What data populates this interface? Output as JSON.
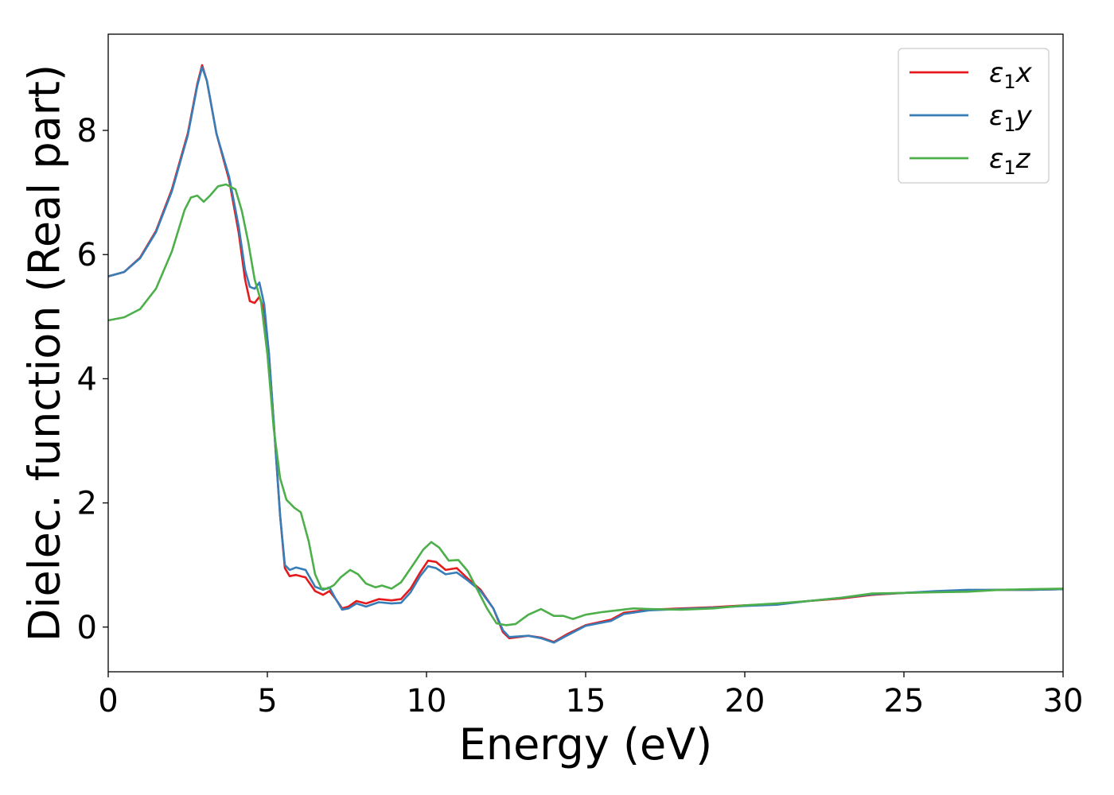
{
  "chart_data": {
    "type": "line",
    "xlabel": "Energy (eV)",
    "ylabel": "Dielec. function (Real part)",
    "xlim": [
      0,
      30
    ],
    "ylim": [
      -0.72,
      9.55
    ],
    "xticks": [
      0,
      5,
      10,
      15,
      20,
      25,
      30
    ],
    "yticks": [
      0,
      2,
      4,
      6,
      8
    ],
    "grid": false,
    "legend_position": "top-right",
    "series": [
      {
        "name": "ε₁x",
        "label_base": "ε",
        "label_sub": "1",
        "label_suffix": "x",
        "color": "#e41a1c",
        "points": [
          [
            0,
            5.65
          ],
          [
            0.5,
            5.72
          ],
          [
            1.0,
            5.95
          ],
          [
            1.5,
            6.38
          ],
          [
            2.0,
            7.05
          ],
          [
            2.5,
            7.95
          ],
          [
            2.8,
            8.75
          ],
          [
            2.95,
            9.05
          ],
          [
            3.1,
            8.8
          ],
          [
            3.4,
            7.95
          ],
          [
            3.8,
            7.2
          ],
          [
            4.1,
            6.35
          ],
          [
            4.3,
            5.6
          ],
          [
            4.45,
            5.25
          ],
          [
            4.6,
            5.22
          ],
          [
            4.75,
            5.32
          ],
          [
            4.9,
            5.1
          ],
          [
            5.05,
            4.4
          ],
          [
            5.2,
            3.3
          ],
          [
            5.4,
            1.8
          ],
          [
            5.55,
            0.95
          ],
          [
            5.7,
            0.82
          ],
          [
            5.9,
            0.84
          ],
          [
            6.2,
            0.8
          ],
          [
            6.5,
            0.58
          ],
          [
            6.75,
            0.52
          ],
          [
            6.95,
            0.58
          ],
          [
            7.15,
            0.45
          ],
          [
            7.35,
            0.3
          ],
          [
            7.55,
            0.33
          ],
          [
            7.8,
            0.42
          ],
          [
            8.1,
            0.38
          ],
          [
            8.5,
            0.45
          ],
          [
            8.9,
            0.43
          ],
          [
            9.2,
            0.45
          ],
          [
            9.5,
            0.62
          ],
          [
            9.8,
            0.88
          ],
          [
            10.05,
            1.07
          ],
          [
            10.3,
            1.05
          ],
          [
            10.6,
            0.92
          ],
          [
            10.95,
            0.95
          ],
          [
            11.3,
            0.78
          ],
          [
            11.7,
            0.6
          ],
          [
            12.1,
            0.3
          ],
          [
            12.4,
            -0.08
          ],
          [
            12.6,
            -0.18
          ],
          [
            13.2,
            -0.14
          ],
          [
            13.6,
            -0.17
          ],
          [
            14.0,
            -0.24
          ],
          [
            14.4,
            -0.12
          ],
          [
            15.0,
            0.03
          ],
          [
            15.8,
            0.12
          ],
          [
            16.2,
            0.23
          ],
          [
            17.0,
            0.28
          ],
          [
            18.0,
            0.3
          ],
          [
            19.0,
            0.32
          ],
          [
            20.0,
            0.35
          ],
          [
            21.0,
            0.37
          ],
          [
            22.0,
            0.42
          ],
          [
            23.0,
            0.46
          ],
          [
            24.0,
            0.52
          ],
          [
            25.0,
            0.55
          ],
          [
            26.0,
            0.57
          ],
          [
            27.0,
            0.59
          ],
          [
            28.0,
            0.6
          ],
          [
            29.0,
            0.6
          ],
          [
            30.0,
            0.61
          ]
        ]
      },
      {
        "name": "ε₁y",
        "label_base": "ε",
        "label_sub": "1",
        "label_suffix": "y",
        "color": "#377eb8",
        "points": [
          [
            0,
            5.65
          ],
          [
            0.5,
            5.72
          ],
          [
            1.0,
            5.94
          ],
          [
            1.5,
            6.36
          ],
          [
            2.0,
            7.02
          ],
          [
            2.5,
            7.92
          ],
          [
            2.8,
            8.72
          ],
          [
            2.95,
            9.02
          ],
          [
            3.1,
            8.8
          ],
          [
            3.4,
            7.95
          ],
          [
            3.8,
            7.25
          ],
          [
            4.1,
            6.45
          ],
          [
            4.3,
            5.75
          ],
          [
            4.45,
            5.48
          ],
          [
            4.6,
            5.45
          ],
          [
            4.75,
            5.55
          ],
          [
            4.9,
            5.2
          ],
          [
            5.05,
            4.4
          ],
          [
            5.2,
            3.3
          ],
          [
            5.4,
            1.8
          ],
          [
            5.55,
            1.0
          ],
          [
            5.7,
            0.92
          ],
          [
            5.9,
            0.96
          ],
          [
            6.2,
            0.92
          ],
          [
            6.5,
            0.65
          ],
          [
            6.75,
            0.6
          ],
          [
            6.95,
            0.64
          ],
          [
            7.15,
            0.45
          ],
          [
            7.35,
            0.28
          ],
          [
            7.55,
            0.3
          ],
          [
            7.8,
            0.38
          ],
          [
            8.1,
            0.33
          ],
          [
            8.5,
            0.4
          ],
          [
            8.9,
            0.38
          ],
          [
            9.2,
            0.39
          ],
          [
            9.5,
            0.56
          ],
          [
            9.8,
            0.82
          ],
          [
            10.05,
            0.98
          ],
          [
            10.3,
            0.95
          ],
          [
            10.6,
            0.85
          ],
          [
            10.95,
            0.88
          ],
          [
            11.3,
            0.75
          ],
          [
            11.7,
            0.58
          ],
          [
            12.1,
            0.3
          ],
          [
            12.4,
            -0.05
          ],
          [
            12.6,
            -0.16
          ],
          [
            13.2,
            -0.14
          ],
          [
            13.6,
            -0.18
          ],
          [
            14.0,
            -0.25
          ],
          [
            14.4,
            -0.14
          ],
          [
            15.0,
            0.02
          ],
          [
            15.8,
            0.1
          ],
          [
            16.2,
            0.21
          ],
          [
            17.0,
            0.27
          ],
          [
            18.0,
            0.29
          ],
          [
            19.0,
            0.31
          ],
          [
            20.0,
            0.34
          ],
          [
            21.0,
            0.36
          ],
          [
            22.0,
            0.42
          ],
          [
            23.0,
            0.47
          ],
          [
            24.0,
            0.53
          ],
          [
            25.0,
            0.55
          ],
          [
            26.0,
            0.58
          ],
          [
            27.0,
            0.6
          ],
          [
            28.0,
            0.6
          ],
          [
            29.0,
            0.6
          ],
          [
            30.0,
            0.61
          ]
        ]
      },
      {
        "name": "ε₁z",
        "label_base": "ε",
        "label_sub": "1",
        "label_suffix": "z",
        "color": "#4daf4a",
        "points": [
          [
            0,
            4.94
          ],
          [
            0.5,
            4.99
          ],
          [
            1.0,
            5.12
          ],
          [
            1.5,
            5.45
          ],
          [
            2.0,
            6.05
          ],
          [
            2.4,
            6.72
          ],
          [
            2.6,
            6.92
          ],
          [
            2.8,
            6.95
          ],
          [
            3.0,
            6.85
          ],
          [
            3.2,
            6.95
          ],
          [
            3.45,
            7.1
          ],
          [
            3.7,
            7.13
          ],
          [
            4.0,
            7.05
          ],
          [
            4.2,
            6.7
          ],
          [
            4.4,
            6.2
          ],
          [
            4.6,
            5.6
          ],
          [
            4.8,
            5.25
          ],
          [
            5.0,
            4.4
          ],
          [
            5.2,
            3.2
          ],
          [
            5.4,
            2.4
          ],
          [
            5.6,
            2.05
          ],
          [
            5.85,
            1.92
          ],
          [
            6.05,
            1.85
          ],
          [
            6.3,
            1.38
          ],
          [
            6.5,
            0.85
          ],
          [
            6.7,
            0.62
          ],
          [
            6.9,
            0.62
          ],
          [
            7.1,
            0.68
          ],
          [
            7.3,
            0.8
          ],
          [
            7.6,
            0.92
          ],
          [
            7.85,
            0.85
          ],
          [
            8.1,
            0.7
          ],
          [
            8.4,
            0.64
          ],
          [
            8.6,
            0.67
          ],
          [
            8.9,
            0.62
          ],
          [
            9.2,
            0.72
          ],
          [
            9.6,
            1.02
          ],
          [
            9.9,
            1.25
          ],
          [
            10.15,
            1.37
          ],
          [
            10.4,
            1.28
          ],
          [
            10.7,
            1.07
          ],
          [
            11.0,
            1.08
          ],
          [
            11.3,
            0.9
          ],
          [
            11.6,
            0.6
          ],
          [
            11.9,
            0.3
          ],
          [
            12.2,
            0.06
          ],
          [
            12.5,
            0.03
          ],
          [
            12.8,
            0.05
          ],
          [
            13.2,
            0.2
          ],
          [
            13.6,
            0.29
          ],
          [
            14.0,
            0.18
          ],
          [
            14.3,
            0.18
          ],
          [
            14.6,
            0.13
          ],
          [
            15.0,
            0.2
          ],
          [
            15.5,
            0.24
          ],
          [
            16.0,
            0.27
          ],
          [
            16.5,
            0.3
          ],
          [
            17.0,
            0.29
          ],
          [
            18.0,
            0.28
          ],
          [
            19.0,
            0.3
          ],
          [
            20.0,
            0.35
          ],
          [
            21.0,
            0.38
          ],
          [
            22.0,
            0.42
          ],
          [
            23.0,
            0.47
          ],
          [
            24.0,
            0.54
          ],
          [
            25.0,
            0.55
          ],
          [
            26.0,
            0.56
          ],
          [
            27.0,
            0.57
          ],
          [
            28.0,
            0.6
          ],
          [
            29.0,
            0.61
          ],
          [
            30.0,
            0.62
          ]
        ]
      }
    ]
  }
}
